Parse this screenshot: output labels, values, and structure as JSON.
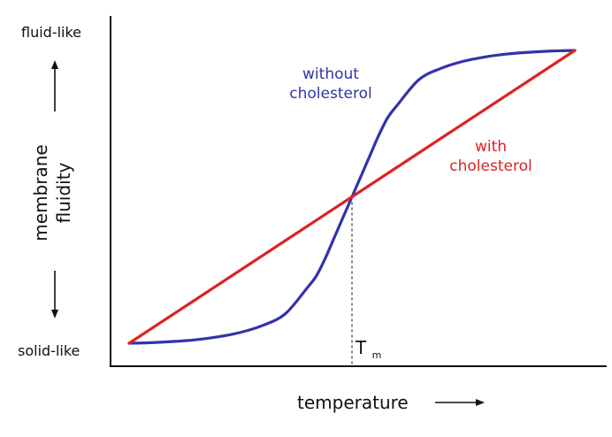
{
  "chart_data": {
    "type": "line",
    "xlabel": "temperature",
    "ylabel": [
      "membrane",
      "fluidity"
    ],
    "y_top_label": "fluid-like",
    "y_bottom_label": "solid-like",
    "annotation": {
      "label": "T",
      "subscript": "m",
      "x": 0.5
    },
    "xlim": [
      0,
      1
    ],
    "ylim": [
      0,
      1
    ],
    "grid": false,
    "series": [
      {
        "name": [
          "without",
          "cholesterol"
        ],
        "color": "#3333aa",
        "x": [
          0,
          0.05,
          0.1,
          0.15,
          0.2,
          0.25,
          0.3,
          0.35,
          0.4,
          0.42,
          0.44,
          0.46,
          0.48,
          0.5,
          0.52,
          0.54,
          0.56,
          0.58,
          0.6,
          0.65,
          0.7,
          0.75,
          0.8,
          0.85,
          0.9,
          0.95,
          1.0
        ],
        "y": [
          0,
          0.002,
          0.006,
          0.012,
          0.022,
          0.037,
          0.061,
          0.1,
          0.19,
          0.23,
          0.29,
          0.36,
          0.43,
          0.5,
          0.57,
          0.64,
          0.71,
          0.77,
          0.81,
          0.9,
          0.939,
          0.963,
          0.978,
          0.988,
          0.994,
          0.998,
          1.0
        ]
      },
      {
        "name": [
          "with",
          "cholesterol"
        ],
        "color": "#dd2222",
        "x": [
          0,
          1
        ],
        "y": [
          0,
          1
        ]
      }
    ]
  }
}
